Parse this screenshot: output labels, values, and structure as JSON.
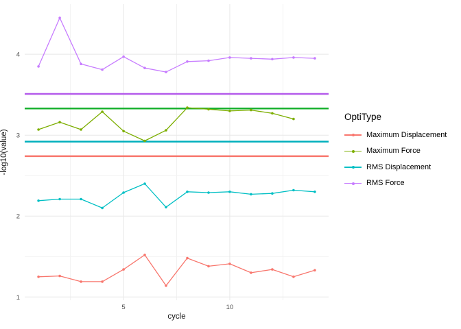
{
  "chart_data": {
    "type": "line",
    "title": "",
    "xlabel": "cycle",
    "ylabel": "-log10(value)",
    "legend_title": "OptiType",
    "legend_position": "right",
    "grid": true,
    "background": "#ffffff",
    "major_grid_color": "#e7e7e7",
    "minor_grid_color": "#f2f2f2",
    "tick_label_color": "#4d4d4d",
    "x": [
      1,
      2,
      3,
      4,
      5,
      6,
      7,
      8,
      9,
      10,
      11,
      12,
      13,
      14
    ],
    "xlim": [
      0.35,
      14.65
    ],
    "ylim": [
      0.96,
      4.62
    ],
    "x_ticks": [
      {
        "v": 5,
        "label": "5"
      },
      {
        "v": 10,
        "label": "10"
      }
    ],
    "y_ticks": [
      {
        "v": 1,
        "label": "1"
      },
      {
        "v": 2,
        "label": "2"
      },
      {
        "v": 3,
        "label": "3"
      },
      {
        "v": 4,
        "label": "4"
      }
    ],
    "x_minor": [
      2.5,
      7.5,
      12.5
    ],
    "y_minor": [
      1.5,
      2.5,
      3.5
    ],
    "series": [
      {
        "name": "Maximum Displacement",
        "color": "#F8766D",
        "hline": 2.74,
        "hline_color": "#F8766D",
        "values": [
          1.25,
          1.26,
          1.19,
          1.19,
          1.34,
          1.52,
          1.14,
          1.48,
          1.38,
          1.41,
          1.3,
          1.34,
          1.25,
          1.33
        ]
      },
      {
        "name": "Maximum Force",
        "color": "#7CAE00",
        "hline": 3.33,
        "hline_color": "#17B12E",
        "values": [
          3.07,
          3.16,
          3.07,
          3.29,
          3.05,
          2.93,
          3.06,
          3.34,
          3.32,
          3.3,
          3.31,
          3.27,
          3.2,
          null
        ]
      },
      {
        "name": "RMS Displacement",
        "color": "#00BFC4",
        "hline": 2.92,
        "hline_color": "#00AFBC",
        "values": [
          2.19,
          2.21,
          2.21,
          2.1,
          2.29,
          2.4,
          2.11,
          2.3,
          2.29,
          2.3,
          2.27,
          2.28,
          2.32,
          2.3
        ]
      },
      {
        "name": "RMS Force",
        "color": "#C77CFF",
        "hline": 3.51,
        "hline_color": "#B55CEC",
        "values": [
          3.85,
          4.45,
          3.88,
          3.81,
          3.97,
          3.83,
          3.78,
          3.91,
          3.92,
          3.96,
          3.95,
          3.94,
          3.96,
          3.95
        ]
      }
    ]
  }
}
